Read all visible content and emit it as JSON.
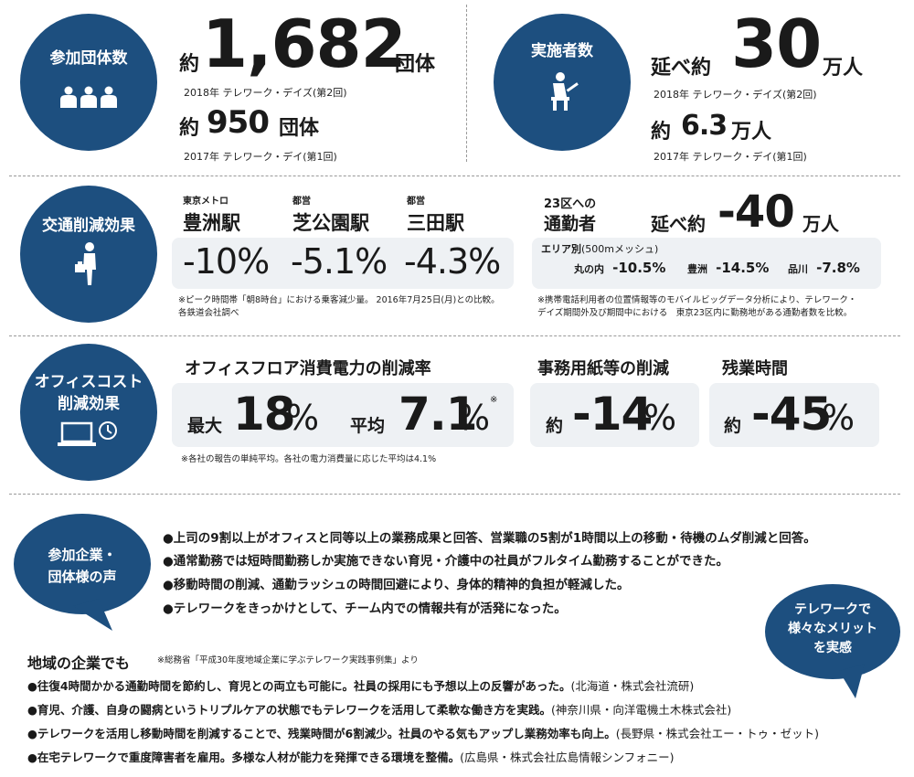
{
  "participants": {
    "label": "参加団体数",
    "prefix": "約",
    "value_2018": "1,682",
    "unit": "団体",
    "caption_2018": "2018年 テレワーク・デイズ(第2回)",
    "value_2017": "950",
    "caption_2017": "2017年 テレワーク・デイ(第1回)"
  },
  "implementers": {
    "label": "実施者数",
    "prefix_2018": "延べ約",
    "value_2018": "30",
    "unit": "万人",
    "caption_2018": "2018年 テレワーク・デイズ(第2回)",
    "prefix_2017": "約",
    "value_2017": "6.3",
    "caption_2017": "2017年 テレワーク・デイ(第1回)"
  },
  "traffic": {
    "label": "交通削減効果",
    "stations": [
      {
        "operator": "東京メトロ",
        "name": "豊洲駅",
        "value": "-10%"
      },
      {
        "operator": "都営",
        "name": "芝公園駅",
        "value": "-5.1%"
      },
      {
        "operator": "都営",
        "name": "三田駅",
        "value": "-4.3%"
      }
    ],
    "station_note_1": "※ピーク時間帯「朝8時台」における乗客減少量。 2016年7月25日(月)との比較。",
    "station_note_2": "各鉄道会社調べ",
    "commute_label_1": "23区への",
    "commute_label_2": "通勤者",
    "commute_prefix": "延べ約",
    "commute_value": "-40",
    "commute_unit": "万人",
    "area_title": "エリア別",
    "area_sub": "(500mメッシュ)",
    "areas": [
      {
        "name": "丸の内",
        "value": "-10.5%"
      },
      {
        "name": "豊洲",
        "value": "-14.5%"
      },
      {
        "name": "品川",
        "value": "-7.8%"
      }
    ],
    "area_note_1": "※携帯電話利用者の位置情報等のモバイルビッグデータ分析により、テレワーク・",
    "area_note_2": "デイズ期間外及び期間中における　東京23区内に勤務地がある通勤者数を比較。"
  },
  "office": {
    "label_1": "オフィスコスト",
    "label_2": "削減効果",
    "power_title": "オフィスフロア消費電力の削減率",
    "max_label": "最大",
    "max_value": "18",
    "avg_label": "平均",
    "avg_value": "7.1",
    "pct": "%",
    "mark": "※",
    "power_note": "※各社の報告の単純平均。各社の電力消費量に応じた平均は4.1%",
    "paper_title": "事務用紙等の削減",
    "paper_prefix": "約",
    "paper_value": "-14",
    "overtime_title": "残業時間",
    "overtime_prefix": "約",
    "overtime_value": "-45"
  },
  "voices": {
    "label_1": "参加企業・",
    "label_2": "団体様の声",
    "items": [
      "●上司の9割以上がオフィスと同等以上の業務成果と回答、営業職の5割が1時間以上の移動・待機のムダ削減と回答。",
      "●通常勤務では短時間勤務しか実施できない育児・介護中の社員がフルタイム勤務することができた。",
      "●移動時間の削減、通勤ラッシュの時間回避により、身体的精神的負担が軽減した。",
      "●テレワークをきっかけとして、チーム内での情報共有が活発になった。"
    ],
    "merit_1": "テレワークで",
    "merit_2": "様々なメリット",
    "merit_3": "を実感"
  },
  "regional": {
    "title": "地域の企業でも",
    "source": "※総務省「平成30年度地域企業に学ぶテレワーク実践事例集」より",
    "items": [
      {
        "text": "●往復4時間かかる通勤時間を節約し、育児との両立も可能に。社員の採用にも予想以上の反響があった。",
        "src": "(北海道・株式会社流研)"
      },
      {
        "text": "●育児、介護、自身の闘病というトリプルケアの状態でもテレワークを活用して柔軟な働き方を実践。",
        "src": "(神奈川県・向洋電機土木株式会社)"
      },
      {
        "text": "●テレワークを活用し移動時間を削減することで、残業時間が6割減少。社員のやる気もアップし業務効率も向上。",
        "src": "(長野県・株式会社エー・トゥ・ゼット)"
      },
      {
        "text": "●在宅テレワークで重度障害者を雇用。多様な人材が能力を発揮できる環境を整備。",
        "src": "(広島県・株式会社広島情報シンフォニー)"
      }
    ]
  },
  "colors": {
    "navy": "#1d4f7f",
    "panel": "#eef1f4"
  }
}
